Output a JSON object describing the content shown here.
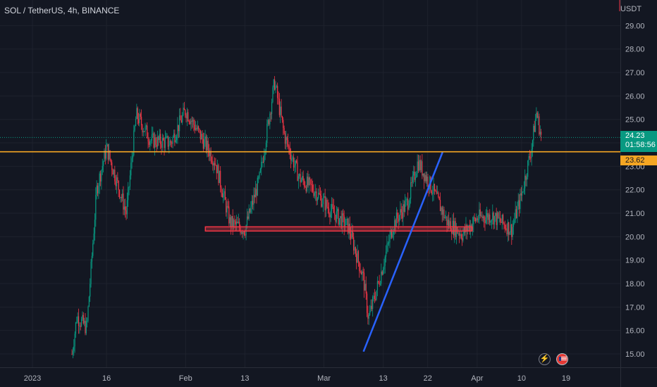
{
  "header": {
    "symbol_title": "SOL / TetherUS, 4h, BINANCE",
    "currency": "USDT"
  },
  "price_tags": {
    "current_price": "24.23",
    "countdown": "01:58:56",
    "level_price": "23.62"
  },
  "colors": {
    "background": "#131722",
    "up_candle": "#089981",
    "down_candle": "#f23645",
    "level_line": "#f5a623",
    "support_zone": "#f23645",
    "trendline": "#2962ff",
    "grid": "#1e222d"
  },
  "chart_data": {
    "type": "candlestick",
    "timeframe": "4h",
    "y_axis_ticks": [
      "15.00",
      "16.00",
      "17.00",
      "18.00",
      "19.00",
      "20.00",
      "21.00",
      "22.00",
      "23.00",
      "24.00",
      "25.00",
      "26.00",
      "27.00",
      "28.00",
      "29.00"
    ],
    "ylim": [
      14.6,
      29.9
    ],
    "x_axis_ticks": [
      "2023",
      "16",
      "Feb",
      "13",
      "Mar",
      "13",
      "22",
      "Apr",
      "10",
      "19"
    ],
    "xlim": [
      "2023-01-01",
      "2023-04-22"
    ],
    "approx_close_path": [
      {
        "date": "2023-01-09",
        "price": 15.0
      },
      {
        "date": "2023-01-10",
        "price": 16.6
      },
      {
        "date": "2023-01-12",
        "price": 16.1
      },
      {
        "date": "2023-01-14",
        "price": 22.0
      },
      {
        "date": "2023-01-16",
        "price": 23.8
      },
      {
        "date": "2023-01-18",
        "price": 22.4
      },
      {
        "date": "2023-01-20",
        "price": 21.0
      },
      {
        "date": "2023-01-22",
        "price": 25.2
      },
      {
        "date": "2023-01-25",
        "price": 24.1
      },
      {
        "date": "2023-01-29",
        "price": 24.0
      },
      {
        "date": "2023-02-01",
        "price": 25.4
      },
      {
        "date": "2023-02-04",
        "price": 24.3
      },
      {
        "date": "2023-02-07",
        "price": 23.2
      },
      {
        "date": "2023-02-10",
        "price": 20.6
      },
      {
        "date": "2023-02-13",
        "price": 20.3
      },
      {
        "date": "2023-02-16",
        "price": 22.5
      },
      {
        "date": "2023-02-19",
        "price": 26.6
      },
      {
        "date": "2023-02-21",
        "price": 24.3
      },
      {
        "date": "2023-02-24",
        "price": 22.5
      },
      {
        "date": "2023-02-27",
        "price": 22.0
      },
      {
        "date": "2023-03-02",
        "price": 21.2
      },
      {
        "date": "2023-03-06",
        "price": 20.4
      },
      {
        "date": "2023-03-09",
        "price": 18.2
      },
      {
        "date": "2023-03-10",
        "price": 16.5
      },
      {
        "date": "2023-03-12",
        "price": 18.0
      },
      {
        "date": "2023-03-15",
        "price": 20.5
      },
      {
        "date": "2023-03-18",
        "price": 21.5
      },
      {
        "date": "2023-03-20",
        "price": 23.2
      },
      {
        "date": "2023-03-23",
        "price": 22.0
      },
      {
        "date": "2023-03-26",
        "price": 20.6
      },
      {
        "date": "2023-03-29",
        "price": 20.1
      },
      {
        "date": "2023-04-01",
        "price": 20.8
      },
      {
        "date": "2023-04-04",
        "price": 20.9
      },
      {
        "date": "2023-04-08",
        "price": 20.3
      },
      {
        "date": "2023-04-10",
        "price": 21.8
      },
      {
        "date": "2023-04-12",
        "price": 23.8
      },
      {
        "date": "2023-04-13",
        "price": 25.3
      },
      {
        "date": "2023-04-14",
        "price": 24.23
      }
    ],
    "horizontal_level": {
      "price": 23.62
    },
    "support_zone": {
      "price": 20.33,
      "from": "2023-02-05",
      "to": "2023-03-31"
    },
    "trendline": {
      "from": {
        "date": "2023-03-09",
        "price": 15.1
      },
      "to": {
        "date": "2023-03-25",
        "price": 23.6
      }
    },
    "last_price": 24.23
  }
}
